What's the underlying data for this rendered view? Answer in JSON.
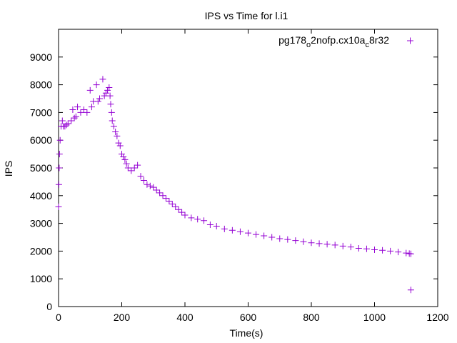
{
  "chart_data": {
    "type": "scatter",
    "title": "IPS vs Time for l.i1",
    "xlabel": "Time(s)",
    "ylabel": "IPS",
    "xlim": [
      0,
      1200
    ],
    "ylim": [
      0,
      10000
    ],
    "xticks": [
      0,
      200,
      400,
      600,
      800,
      1000,
      1200
    ],
    "yticks": [
      0,
      1000,
      2000,
      3000,
      4000,
      5000,
      6000,
      7000,
      8000,
      9000
    ],
    "legend_position": "top-right",
    "series": [
      {
        "name": "pg178_o2nofp.cx10a_c8r32",
        "name_parts": [
          "pg178",
          "o",
          "2nofp.cx10a",
          "c",
          "8r32"
        ],
        "color": "#9400d3",
        "marker": "+",
        "x": [
          0,
          1,
          2,
          3,
          5,
          8,
          12,
          15,
          20,
          25,
          30,
          40,
          45,
          50,
          55,
          60,
          70,
          80,
          90,
          100,
          105,
          110,
          120,
          125,
          130,
          140,
          145,
          150,
          155,
          160,
          163,
          165,
          168,
          170,
          175,
          180,
          185,
          190,
          195,
          200,
          205,
          210,
          215,
          220,
          230,
          240,
          250,
          260,
          270,
          280,
          290,
          300,
          310,
          320,
          330,
          340,
          350,
          360,
          370,
          380,
          390,
          400,
          420,
          440,
          460,
          480,
          500,
          525,
          550,
          575,
          600,
          625,
          650,
          675,
          700,
          725,
          750,
          775,
          800,
          825,
          850,
          875,
          900,
          925,
          950,
          975,
          1000,
          1025,
          1050,
          1075,
          1100,
          1110,
          1115,
          1115
        ],
        "y": [
          3600,
          4400,
          5000,
          5500,
          6000,
          6500,
          6700,
          6500,
          6500,
          6550,
          6600,
          6700,
          7100,
          6800,
          6850,
          7200,
          7000,
          7100,
          7000,
          7800,
          7200,
          7400,
          8000,
          7400,
          7500,
          8200,
          7600,
          7700,
          7800,
          7900,
          7600,
          7300,
          7000,
          6700,
          6500,
          6300,
          6150,
          5900,
          5800,
          5500,
          5400,
          5300,
          5150,
          5000,
          4900,
          5000,
          5100,
          4700,
          4550,
          4400,
          4350,
          4300,
          4200,
          4100,
          4000,
          3900,
          3800,
          3700,
          3600,
          3500,
          3400,
          3300,
          3200,
          3150,
          3100,
          2950,
          2900,
          2800,
          2750,
          2700,
          2650,
          2600,
          2550,
          2500,
          2450,
          2420,
          2380,
          2340,
          2300,
          2270,
          2250,
          2220,
          2180,
          2150,
          2100,
          2080,
          2050,
          2030,
          2000,
          1970,
          1930,
          1910,
          1900,
          600
        ]
      }
    ]
  }
}
